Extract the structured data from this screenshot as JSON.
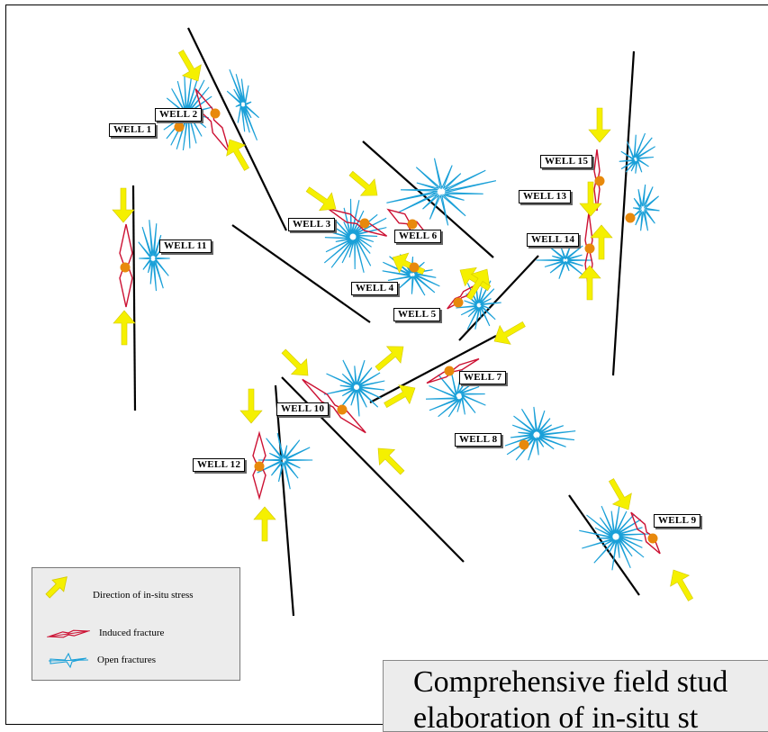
{
  "colors": {
    "fault": "#000000",
    "stress_arrow": "#f5f000",
    "stress_arrow_outline": "#d4c800",
    "induced_fracture": "#cc1133",
    "open_fracture": "#1aa0d8",
    "well_marker": "#e8890c",
    "legend_bg": "#ececec"
  },
  "wells": [
    {
      "id": "well-1",
      "label": "WELL 1"
    },
    {
      "id": "well-2",
      "label": "WELL 2"
    },
    {
      "id": "well-3",
      "label": "WELL 3"
    },
    {
      "id": "well-4",
      "label": "WELL 4"
    },
    {
      "id": "well-5",
      "label": "WELL 5"
    },
    {
      "id": "well-6",
      "label": "WELL 6"
    },
    {
      "id": "well-7",
      "label": "WELL 7"
    },
    {
      "id": "well-8",
      "label": "WELL 8"
    },
    {
      "id": "well-9",
      "label": "WELL 9"
    },
    {
      "id": "well-10",
      "label": "WELL 10"
    },
    {
      "id": "well-11",
      "label": "WELL 11"
    },
    {
      "id": "well-12",
      "label": "WELL 12"
    },
    {
      "id": "well-13",
      "label": "WELL 13"
    },
    {
      "id": "well-14",
      "label": "WELL 14"
    },
    {
      "id": "well-15",
      "label": "WELL 15"
    }
  ],
  "legend": {
    "items": [
      {
        "icon": "stress-arrow-icon",
        "label": "Direction of in-situ stress"
      },
      {
        "icon": "induced-fracture-icon",
        "label": "Induced fracture"
      },
      {
        "icon": "open-fracture-icon",
        "label": "Open fractures"
      }
    ]
  },
  "caption": {
    "line1": "Comprehensive field stud",
    "line2": "elaboration of in-situ st"
  }
}
